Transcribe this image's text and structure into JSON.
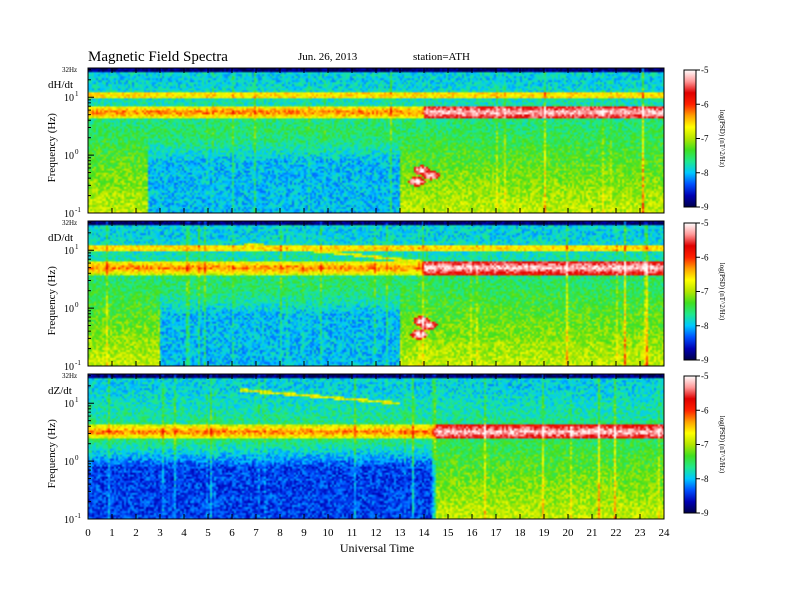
{
  "header": {
    "title": "Magnetic  Field  Spectra",
    "date": "Jun. 26, 2013",
    "station": "station=ATH"
  },
  "colors": {
    "colormap": [
      "#00004a",
      "#0000b4",
      "#0050ff",
      "#00c8ff",
      "#20e88c",
      "#40e020",
      "#b4e600",
      "#ffff00",
      "#ffa000",
      "#ff2000",
      "#e00000",
      "#ff9898",
      "#ffffff"
    ]
  },
  "chart_data": [
    {
      "type": "heatmap",
      "panel_label": "dH/dt",
      "ylabel": "Frequency (Hz)",
      "top_label": "32Hz",
      "y_scale": "log",
      "y_ticks": [
        {
          "value": 0.1,
          "base": "10",
          "exp": "-1"
        },
        {
          "value": 1,
          "base": "10",
          "exp": "0"
        },
        {
          "value": 10,
          "base": "10",
          "exp": "1"
        }
      ],
      "ylim": [
        0.1,
        32
      ],
      "xlim": [
        0,
        24
      ],
      "colorbar": {
        "label": "log(PSD) (nT^2/Hz)",
        "range": [
          -9,
          -5
        ],
        "ticks": [
          "-5",
          "-6",
          "-7",
          "-8",
          "-9"
        ]
      },
      "features": {
        "band_freq": 5.5,
        "band_strong_from_hour": 14.0,
        "harmonic_freq": 11,
        "low_quiet_hours": [
          2.5,
          13
        ],
        "low_quiet_level": -8.0,
        "pc1_bursts": [
          {
            "hour": 13.7,
            "freq": 0.35
          },
          {
            "hour": 14.3,
            "freq": 0.45
          },
          {
            "hour": 13.9,
            "freq": 0.55
          }
        ],
        "rising_tones": []
      }
    },
    {
      "type": "heatmap",
      "panel_label": "dD/dt",
      "ylabel": "Frequency (Hz)",
      "top_label": "32Hz",
      "y_scale": "log",
      "y_ticks": [
        {
          "value": 0.1,
          "base": "10",
          "exp": "-1"
        },
        {
          "value": 1,
          "base": "10",
          "exp": "0"
        },
        {
          "value": 10,
          "base": "10",
          "exp": "1"
        }
      ],
      "ylim": [
        0.1,
        32
      ],
      "xlim": [
        0,
        24
      ],
      "colorbar": {
        "label": "log(PSD) (nT^2/Hz)",
        "range": [
          -9,
          -5
        ],
        "ticks": [
          "-5",
          "-6",
          "-7",
          "-8",
          "-9"
        ]
      },
      "features": {
        "band_freq": 5.0,
        "band_strong_from_hour": 14.0,
        "harmonic_freq": 11,
        "low_quiet_hours": [
          3,
          13
        ],
        "low_quiet_level": -8.0,
        "pc1_bursts": [
          {
            "hour": 13.8,
            "freq": 0.35
          },
          {
            "hour": 14.2,
            "freq": 0.5
          },
          {
            "hour": 13.9,
            "freq": 0.6
          }
        ],
        "rising_tones": [
          {
            "from_hour": 6.5,
            "to_hour": 14.5,
            "from_freq": 13,
            "to_freq": 6
          }
        ]
      }
    },
    {
      "type": "heatmap",
      "panel_label": "dZ/dt",
      "ylabel": "Frequency (Hz)",
      "top_label": "32Hz",
      "y_scale": "log",
      "y_ticks": [
        {
          "value": 0.1,
          "base": "10",
          "exp": "-1"
        },
        {
          "value": 1,
          "base": "10",
          "exp": "0"
        },
        {
          "value": 10,
          "base": "10",
          "exp": "1"
        }
      ],
      "ylim": [
        0.1,
        32
      ],
      "xlim": [
        0,
        24
      ],
      "colorbar": {
        "label": "log(PSD) (nT^2/Hz)",
        "range": [
          -9,
          -5
        ],
        "ticks": [
          "-5",
          "-6",
          "-7",
          "-8",
          "-9"
        ]
      },
      "features": {
        "band_freq": 3.2,
        "band_strong_from_hour": 14.5,
        "harmonic_freq": 0,
        "low_quiet_hours": [
          0,
          14.5
        ],
        "low_quiet_level": -8.4,
        "pc1_bursts": [],
        "rising_tones": [
          {
            "from_hour": 6.3,
            "to_hour": 13.0,
            "from_freq": 17,
            "to_freq": 10
          }
        ]
      }
    }
  ],
  "x_axis": {
    "label": "Universal Time",
    "ticks": [
      "0",
      "1",
      "2",
      "3",
      "4",
      "5",
      "6",
      "7",
      "8",
      "9",
      "10",
      "11",
      "12",
      "13",
      "14",
      "15",
      "16",
      "17",
      "18",
      "19",
      "20",
      "21",
      "22",
      "23",
      "24"
    ]
  }
}
